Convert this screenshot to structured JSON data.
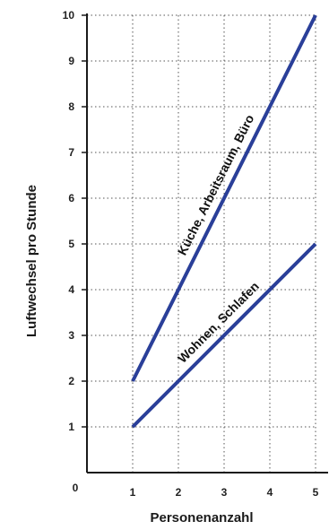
{
  "chart_data": {
    "type": "line",
    "title": "",
    "xlabel": "Personenanzahl",
    "ylabel": "Luftwechsel pro Stunde",
    "origin_label": "0",
    "xlim": [
      0,
      5
    ],
    "ylim": [
      0,
      10
    ],
    "x_ticks": [
      "1",
      "2",
      "3",
      "4",
      "5"
    ],
    "y_ticks": [
      "1",
      "2",
      "3",
      "4",
      "5",
      "6",
      "7",
      "8",
      "9",
      "10"
    ],
    "grid": "dotted",
    "line_color": "#2a3f99",
    "series": [
      {
        "name": "Küche, Arbeitsraum, Büro",
        "x": [
          1,
          5
        ],
        "y": [
          2,
          10
        ]
      },
      {
        "name": "Wohnen, Schlafen",
        "x": [
          1,
          5
        ],
        "y": [
          1,
          5
        ]
      }
    ]
  }
}
